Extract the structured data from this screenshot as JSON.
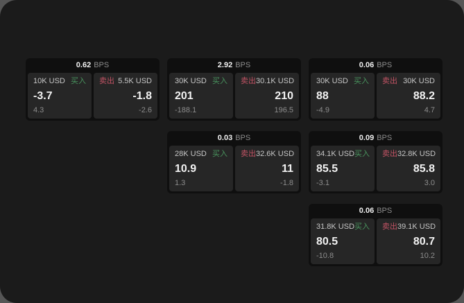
{
  "colors": {
    "bg": "#565656",
    "container": "#1b1b1b",
    "card": "#0f0f0f",
    "panel": "#262626",
    "text_primary": "#f2f2f2",
    "text_secondary": "#c7c7c7",
    "text_muted": "#8d8d8d",
    "buy": "#49945e",
    "sell": "#c25364"
  },
  "labels": {
    "bps": "BPS",
    "buy": "买入",
    "sell": "卖出"
  },
  "cards": [
    {
      "row": 1,
      "col": 1,
      "bps": "0.62",
      "buy": {
        "amount": "10K USD",
        "price": "-3.7",
        "delta": "4.3"
      },
      "sell": {
        "amount": "5.5K USD",
        "price": "-1.8",
        "delta": "-2.6"
      }
    },
    {
      "row": 1,
      "col": 2,
      "bps": "2.92",
      "buy": {
        "amount": "30K USD",
        "price": "201",
        "delta": "-188.1"
      },
      "sell": {
        "amount": "30.1K USD",
        "price": "210",
        "delta": "196.5"
      }
    },
    {
      "row": 1,
      "col": 3,
      "bps": "0.06",
      "buy": {
        "amount": "30K USD",
        "price": "88",
        "delta": "-4.9"
      },
      "sell": {
        "amount": "30K USD",
        "price": "88.2",
        "delta": "4.7"
      }
    },
    {
      "row": 2,
      "col": 2,
      "bps": "0.03",
      "buy": {
        "amount": "28K USD",
        "price": "10.9",
        "delta": "1.3"
      },
      "sell": {
        "amount": "32.6K USD",
        "price": "11",
        "delta": "-1.8"
      }
    },
    {
      "row": 2,
      "col": 3,
      "bps": "0.09",
      "buy": {
        "amount": "34.1K USD",
        "price": "85.5",
        "delta": "-3.1"
      },
      "sell": {
        "amount": "32.8K USD",
        "price": "85.8",
        "delta": "3.0"
      }
    },
    {
      "row": 3,
      "col": 3,
      "bps": "0.06",
      "buy": {
        "amount": "31.8K USD",
        "price": "80.5",
        "delta": "-10.8"
      },
      "sell": {
        "amount": "39.1K USD",
        "price": "80.7",
        "delta": "10.2"
      }
    }
  ]
}
